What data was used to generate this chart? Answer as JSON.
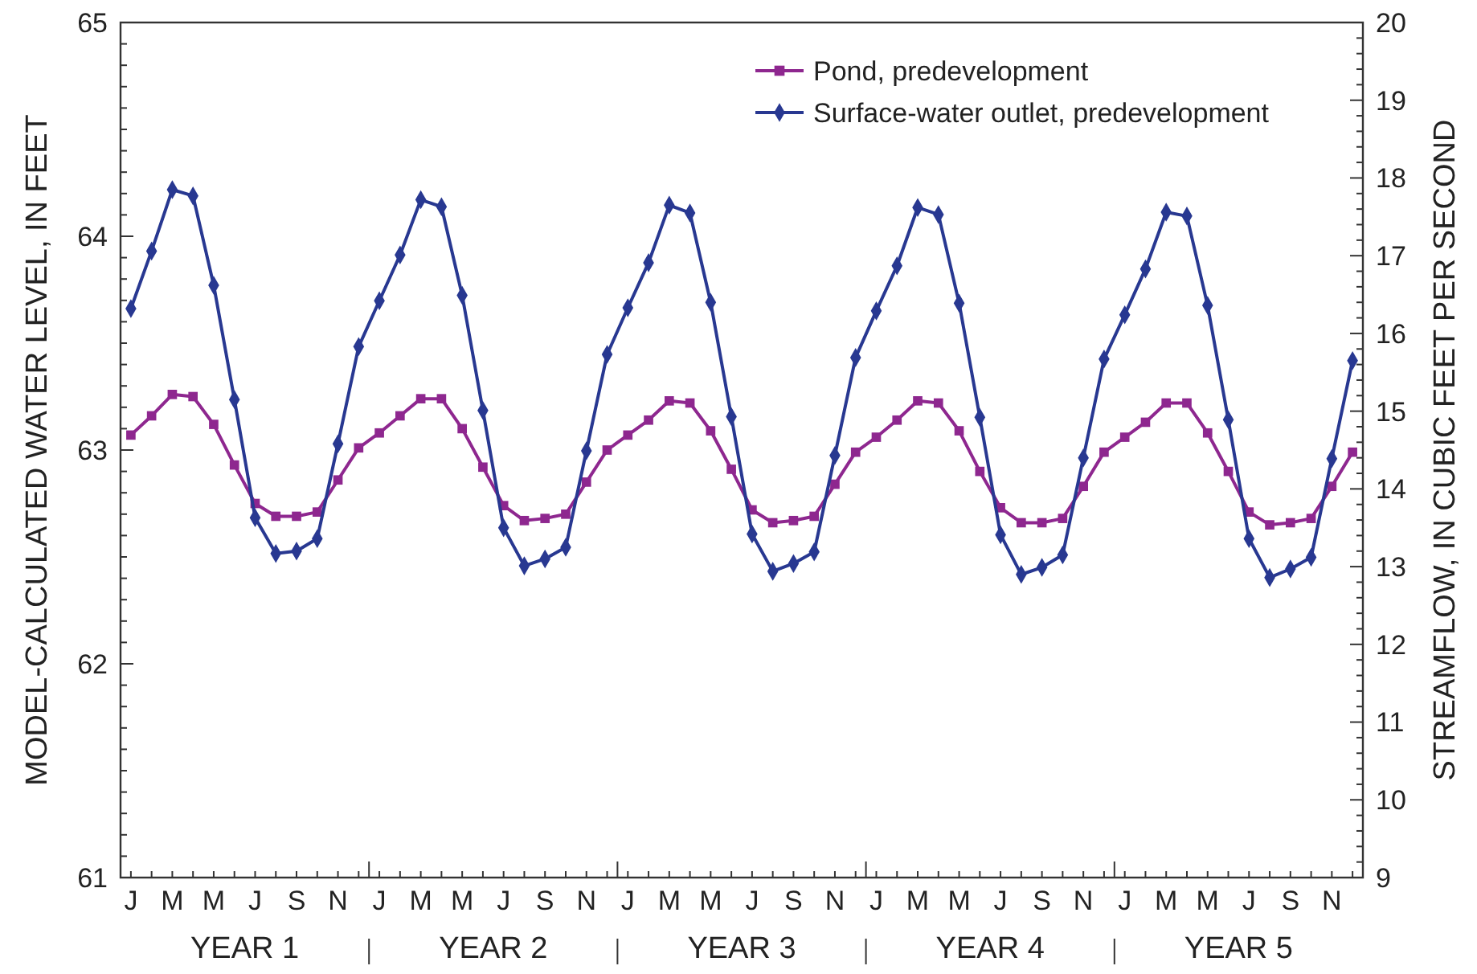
{
  "chart_data": {
    "type": "line",
    "xlabel": null,
    "ylabel": "MODEL-CALCULATED WATER LEVEL, IN FEET",
    "y2label": "STREAMFLOW, IN CUBIC FEET PER SECOND",
    "categories": [
      "J",
      null,
      "M",
      null,
      "M",
      null,
      "J",
      null,
      "S",
      null,
      "N",
      null,
      "J",
      null,
      "M",
      null,
      "M",
      null,
      "J",
      null,
      "S",
      null,
      "N",
      null,
      "J",
      null,
      "M",
      null,
      "M",
      null,
      "J",
      null,
      "S",
      null,
      "N",
      null,
      "J",
      null,
      "M",
      null,
      "M",
      null,
      "J",
      null,
      "S",
      null,
      "N",
      null,
      "J",
      null,
      "M",
      null,
      "M",
      null,
      "J",
      null,
      "S",
      null,
      "N",
      null
    ],
    "annotations": [
      "YEAR 1",
      "YEAR 2",
      "YEAR 3",
      "YEAR 4",
      "YEAR 5"
    ],
    "series": [
      {
        "name": "Pond, predevelopment",
        "color": "#8e278f",
        "marker": "square",
        "axis": "y",
        "values": [
          63.07,
          63.16,
          63.26,
          63.25,
          63.12,
          62.93,
          62.75,
          62.69,
          62.69,
          62.71,
          62.86,
          63.01,
          63.08,
          63.16,
          63.24,
          63.24,
          63.1,
          62.92,
          62.74,
          62.67,
          62.68,
          62.7,
          62.85,
          63.0,
          63.07,
          63.14,
          63.23,
          63.22,
          63.09,
          62.91,
          62.72,
          62.66,
          62.67,
          62.69,
          62.84,
          62.99,
          63.06,
          63.14,
          63.23,
          63.22,
          63.09,
          62.9,
          62.73,
          62.66,
          62.66,
          62.68,
          62.83,
          62.99,
          63.06,
          63.13,
          63.22,
          63.22,
          63.08,
          62.9,
          62.71,
          62.65,
          62.66,
          62.68,
          62.83,
          62.99
        ]
      },
      {
        "name": "Surface-water outlet, predevelopment",
        "color": "#283891",
        "marker": "diamond",
        "axis": "y2",
        "values": [
          16.32,
          17.06,
          17.85,
          17.77,
          16.62,
          15.15,
          13.63,
          13.17,
          13.2,
          13.36,
          14.58,
          15.83,
          16.42,
          17.01,
          17.72,
          17.63,
          16.49,
          15.01,
          13.5,
          13.01,
          13.1,
          13.25,
          14.49,
          15.73,
          16.33,
          16.91,
          17.65,
          17.55,
          16.4,
          14.93,
          13.42,
          12.94,
          13.04,
          13.19,
          14.43,
          15.69,
          16.29,
          16.87,
          17.62,
          17.53,
          16.39,
          14.92,
          13.41,
          12.9,
          12.99,
          13.15,
          14.4,
          15.67,
          16.24,
          16.83,
          17.56,
          17.51,
          16.36,
          14.89,
          13.36,
          12.86,
          12.97,
          13.12,
          14.39,
          15.65
        ]
      }
    ],
    "ylim": [
      61,
      65
    ],
    "yticks": [
      61,
      {
        "value": 61.1,
        "label": null
      },
      {
        "value": 61.2,
        "label": null
      },
      {
        "value": 61.3,
        "label": null
      },
      {
        "value": 61.4,
        "label": null
      },
      {
        "value": 61.5,
        "label": null
      },
      {
        "value": 61.6,
        "label": null
      },
      {
        "value": 61.7,
        "label": null
      },
      {
        "value": 61.8,
        "label": null
      },
      {
        "value": 61.9,
        "label": null
      },
      62,
      {
        "value": 62.1,
        "label": null
      },
      {
        "value": 62.2,
        "label": null
      },
      {
        "value": 62.3,
        "label": null
      },
      {
        "value": 62.4,
        "label": null
      },
      {
        "value": 62.5,
        "label": null
      },
      {
        "value": 62.6,
        "label": null
      },
      {
        "value": 62.7,
        "label": null
      },
      {
        "value": 62.8,
        "label": null
      },
      {
        "value": 62.9,
        "label": null
      },
      63,
      {
        "value": 63.1,
        "label": null
      },
      {
        "value": 63.2,
        "label": null
      },
      {
        "value": 63.3,
        "label": null
      },
      {
        "value": 63.4,
        "label": null
      },
      {
        "value": 63.5,
        "label": null
      },
      {
        "value": 63.6,
        "label": null
      },
      {
        "value": 63.7,
        "label": null
      },
      {
        "value": 63.8,
        "label": null
      },
      {
        "value": 63.9,
        "label": null
      },
      64,
      {
        "value": 64.1,
        "label": null
      },
      {
        "value": 64.2,
        "label": null
      },
      {
        "value": 64.3,
        "label": null
      },
      {
        "value": 64.4,
        "label": null
      },
      {
        "value": 64.5,
        "label": null
      },
      {
        "value": 64.6,
        "label": null
      },
      {
        "value": 64.7,
        "label": null
      },
      {
        "value": 64.8,
        "label": null
      },
      {
        "value": 64.9,
        "label": null
      },
      65
    ],
    "y2lim": [
      9,
      20
    ],
    "y2ticks": [
      9,
      {
        "value": 9.2,
        "label": null
      },
      {
        "value": 9.4,
        "label": null
      },
      {
        "value": 9.6,
        "label": null
      },
      {
        "value": 9.8,
        "label": null
      },
      10,
      {
        "value": 10.2,
        "label": null
      },
      {
        "value": 10.4,
        "label": null
      },
      {
        "value": 10.6,
        "label": null
      },
      {
        "value": 10.8,
        "label": null
      },
      11,
      {
        "value": 11.2,
        "label": null
      },
      {
        "value": 11.4,
        "label": null
      },
      {
        "value": 11.6,
        "label": null
      },
      {
        "value": 11.8,
        "label": null
      },
      12,
      {
        "value": 12.2,
        "label": null
      },
      {
        "value": 12.4,
        "label": null
      },
      {
        "value": 12.6,
        "label": null
      },
      {
        "value": 12.8,
        "label": null
      },
      13,
      {
        "value": 13.2,
        "label": null
      },
      {
        "value": 13.4,
        "label": null
      },
      {
        "value": 13.6,
        "label": null
      },
      {
        "value": 13.8,
        "label": null
      },
      14,
      {
        "value": 14.2,
        "label": null
      },
      {
        "value": 14.4,
        "label": null
      },
      {
        "value": 14.6,
        "label": null
      },
      {
        "value": 14.8,
        "label": null
      },
      15,
      {
        "value": 15.2,
        "label": null
      },
      {
        "value": 15.4,
        "label": null
      },
      {
        "value": 15.6,
        "label": null
      },
      {
        "value": 15.8,
        "label": null
      },
      16,
      {
        "value": 16.2,
        "label": null
      },
      {
        "value": 16.4,
        "label": null
      },
      {
        "value": 16.6,
        "label": null
      },
      {
        "value": 16.8,
        "label": null
      },
      17,
      {
        "value": 17.2,
        "label": null
      },
      {
        "value": 17.4,
        "label": null
      },
      {
        "value": 17.6,
        "label": null
      },
      {
        "value": 17.8,
        "label": null
      },
      18,
      {
        "value": 18.2,
        "label": null
      },
      {
        "value": 18.4,
        "label": null
      },
      {
        "value": 18.6,
        "label": null
      },
      {
        "value": 18.8,
        "label": null
      },
      19,
      {
        "value": 19.2,
        "label": null
      },
      {
        "value": 19.4,
        "label": null
      },
      {
        "value": 19.6,
        "label": null
      },
      {
        "value": 19.8,
        "label": null
      },
      20
    ],
    "grid": false,
    "legend": "top right",
    "line_style": "solid"
  }
}
